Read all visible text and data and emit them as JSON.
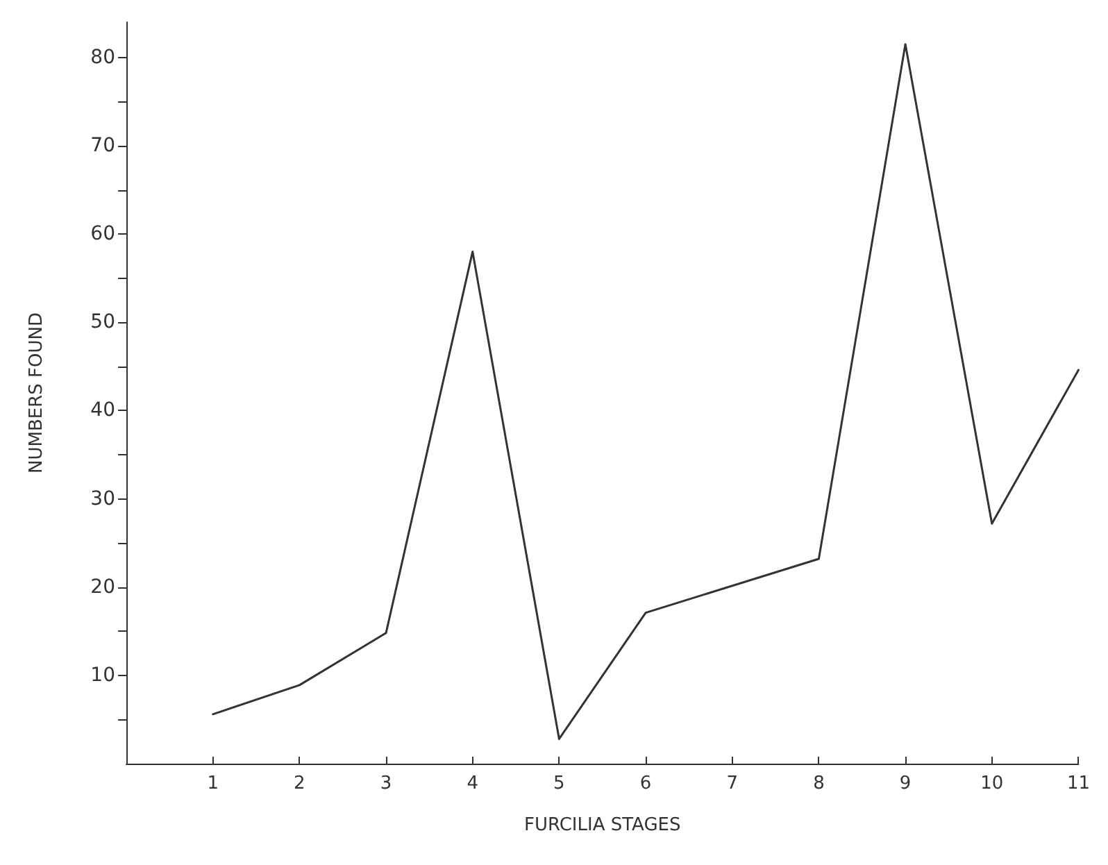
{
  "chart_data": {
    "type": "line",
    "xlabel": "FURCILIA STAGES",
    "ylabel": "NUMBERS FOUND",
    "x": [
      1,
      2,
      3,
      4,
      5,
      6,
      8,
      9,
      10,
      11
    ],
    "series": [
      {
        "color": "#333333",
        "values": [
          5.6,
          8.9,
          14.8,
          58,
          2.8,
          17.1,
          23.2,
          81.5,
          27.2,
          44.6
        ]
      }
    ],
    "xlim": [
      0,
      11
    ],
    "xticks": [
      1,
      2,
      3,
      4,
      5,
      6,
      7,
      8,
      9,
      10,
      11
    ],
    "ylim": [
      0,
      84
    ],
    "yticks": [
      {
        "value": 5,
        "label": null
      },
      10,
      {
        "value": 15,
        "label": null
      },
      20,
      {
        "value": 25,
        "label": null
      },
      30,
      {
        "value": 35,
        "label": null
      },
      40,
      {
        "value": 45,
        "label": null
      },
      50,
      {
        "value": 55,
        "label": null
      },
      60,
      {
        "value": 65,
        "label": null
      },
      70,
      {
        "value": 75,
        "label": null
      },
      80
    ],
    "marker": "none",
    "line_style": "solid"
  }
}
